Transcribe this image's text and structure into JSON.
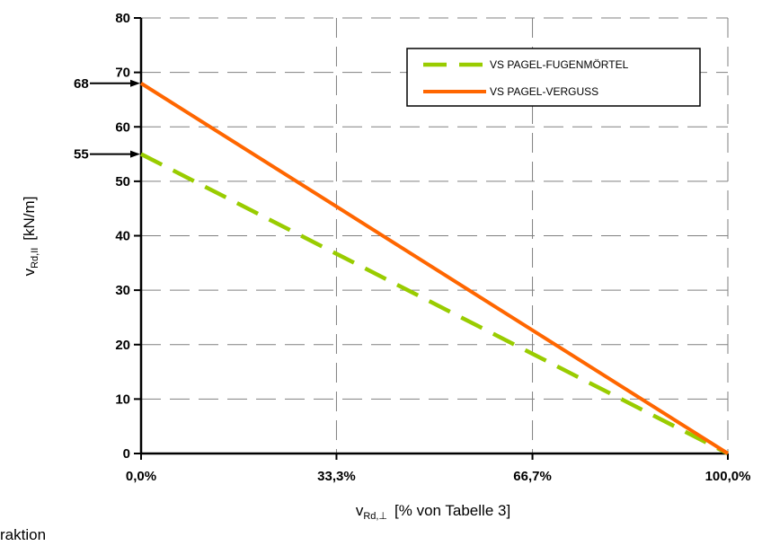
{
  "chart_data": {
    "type": "line",
    "x_tick_labels": [
      "0,0%",
      "33,3%",
      "66,7%",
      "100,0%"
    ],
    "x_tick_values": [
      0,
      33.3,
      66.7,
      100
    ],
    "xlim": [
      0,
      100
    ],
    "ylim": [
      0,
      80
    ],
    "y_ticks": [
      0,
      10,
      20,
      30,
      40,
      50,
      60,
      70,
      80
    ],
    "ylabel": {
      "main": "v",
      "sub": "Rd,II",
      "unit": "[kN/m]"
    },
    "xlabel": {
      "main": "v",
      "sub": "Rd,⊥",
      "unit": "[% von Tabelle 3]"
    },
    "grid": true,
    "legend_position": "top-right",
    "series": [
      {
        "name": "VS PAGEL-FUGENMÖRTEL",
        "color": "#99cc00",
        "dash": true,
        "x": [
          0,
          100
        ],
        "y": [
          55,
          0
        ]
      },
      {
        "name": "VS PAGEL-VERGUSS",
        "color": "#ff6600",
        "dash": false,
        "x": [
          0,
          100
        ],
        "y": [
          68,
          0
        ]
      }
    ],
    "annotations": [
      {
        "label": "68",
        "y": 68
      },
      {
        "label": "55",
        "y": 55
      }
    ]
  },
  "footer_fragment": "raktion"
}
